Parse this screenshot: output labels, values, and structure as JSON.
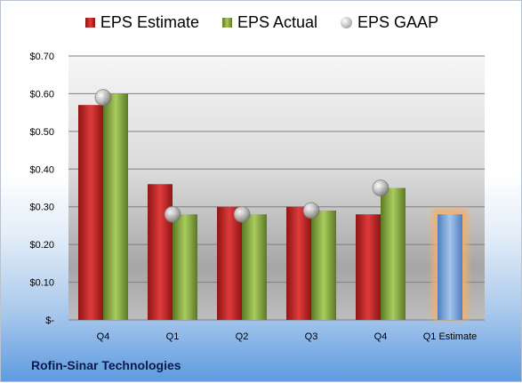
{
  "chart_data": {
    "type": "bar",
    "categories": [
      "Q4",
      "Q1",
      "Q2",
      "Q3",
      "Q4",
      "Q1 Estimate"
    ],
    "series": [
      {
        "name": "EPS Estimate",
        "values": [
          0.57,
          0.36,
          0.3,
          0.3,
          0.28,
          null
        ],
        "color": "#c0262a"
      },
      {
        "name": "EPS Actual",
        "values": [
          0.6,
          0.28,
          0.28,
          0.29,
          0.35,
          null
        ],
        "color": "#8fb04a"
      },
      {
        "name": "EPS GAAP",
        "values": [
          0.59,
          0.28,
          0.28,
          0.29,
          0.35,
          null
        ],
        "color": "#b0b0b0"
      }
    ],
    "forecast": {
      "category": "Q1 Estimate",
      "value": 0.28,
      "color": "#7ea6d8",
      "glow": "#f3b06a"
    },
    "y_ticks": [
      "$-",
      "$0.10",
      "$0.20",
      "$0.30",
      "$0.40",
      "$0.50",
      "$0.60",
      "$0.70"
    ],
    "ylim": [
      0,
      0.7
    ],
    "grid": true,
    "legend_position": "top",
    "footer": "Rofin-Sinar Technologies"
  }
}
